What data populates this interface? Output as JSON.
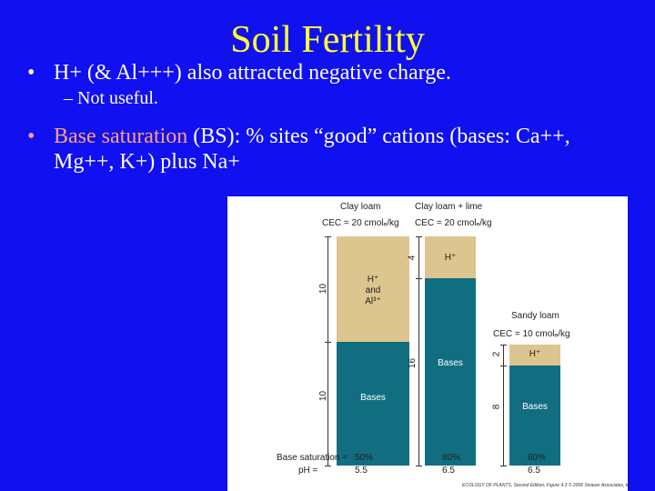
{
  "slide": {
    "title": "Soil Fertility",
    "bullet1": "H+ (& Al+++) also attracted negative charge.",
    "sub1": "– Not useful.",
    "bullet2_highlight": "Base saturation",
    "bullet2_rest": " (BS): % sites “good” cations (bases: Ca++, Mg++, K+) plus Na+"
  },
  "figure": {
    "col1": {
      "name": "Clay loam",
      "cec": "CEC = 20 cmolₑ/kg",
      "h_label_1": "H⁺",
      "h_label_2": "and",
      "h_label_3": "Al³⁺",
      "bases_label": "Bases",
      "h_units": "10",
      "bases_units": "10",
      "bs": "50%",
      "ph": "5.5"
    },
    "col2": {
      "name": "Clay loam + lime",
      "cec": "CEC = 20 cmolₑ/kg",
      "h_label": "H⁺",
      "bases_label": "Bases",
      "h_units": "4",
      "bases_units": "16",
      "bs": "80%",
      "ph": "6.5"
    },
    "col3": {
      "name": "Sandy loam",
      "cec": "CEC = 10 cmolₑ/kg",
      "h_label": "H⁺",
      "bases_label": "Bases",
      "h_units": "2",
      "bases_units": "8",
      "bs": "80%",
      "ph": "6.5"
    },
    "bs_label": "Base saturation =",
    "ph_label": "pH =",
    "credit": "ECOLOGY OF PLANTS, Second Edition, Figure 4.3 © 2006 Sinauer Associates, Inc."
  }
}
